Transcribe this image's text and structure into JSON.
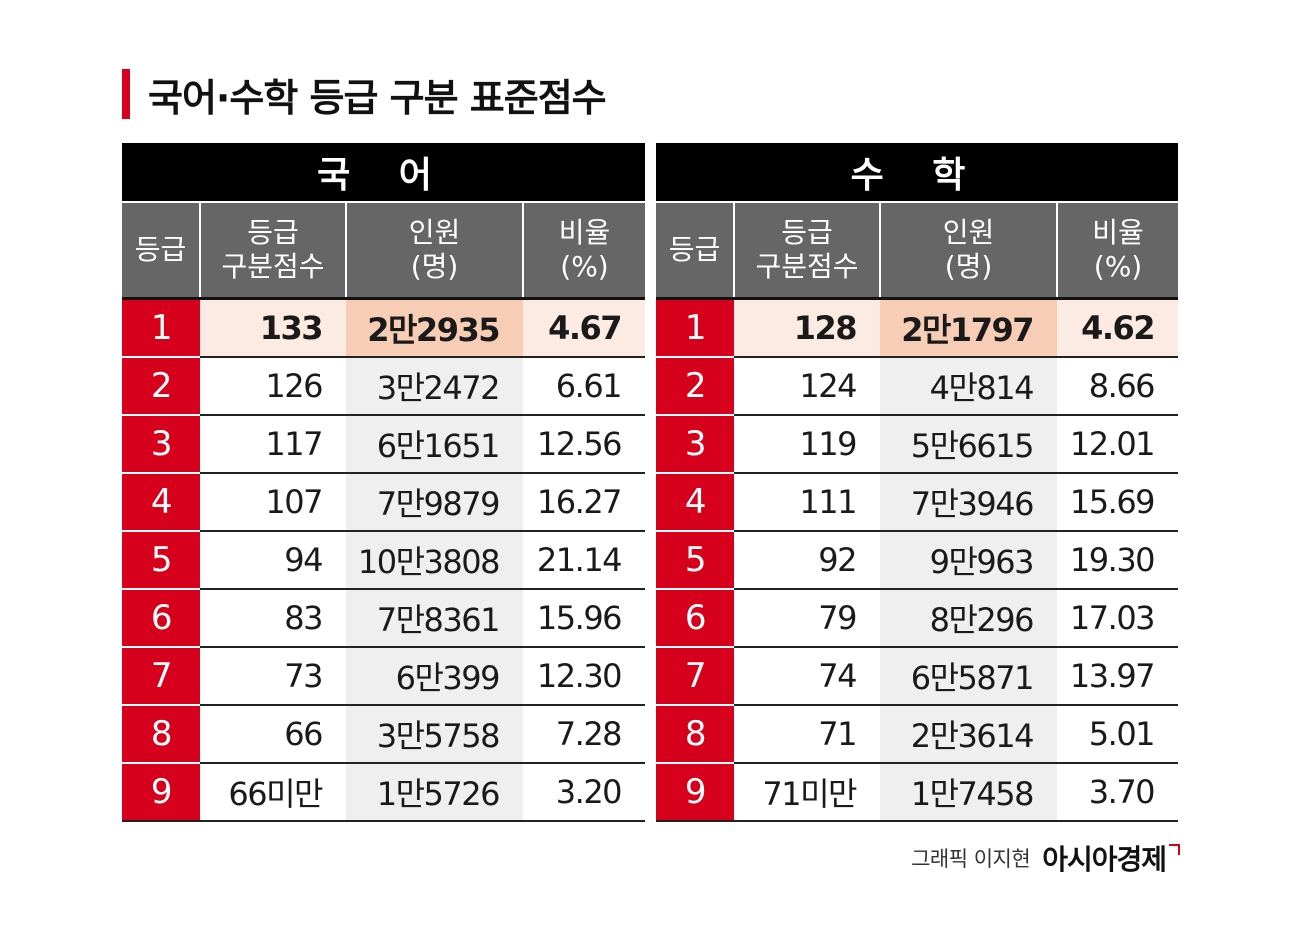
{
  "title": "국어·수학 등급 구분 표준점수",
  "headers": {
    "grade": "등급",
    "cut_line1": "등급",
    "cut_line2": "구분점수",
    "count_line1": "인원",
    "count_line2": "(명)",
    "ratio_line1": "비율",
    "ratio_line2": "(%)"
  },
  "colors": {
    "accent": "#d6001c",
    "header": "#666666",
    "highlight": "#fcebe2",
    "highlight_strong": "#f8cdb6"
  },
  "chart_data": {
    "type": "table",
    "title": "국어·수학 등급 구분 표준점수",
    "columns": [
      "등급",
      "등급 구분점수",
      "인원 (명)",
      "비율 (%)"
    ],
    "tables": [
      {
        "subject": "국  어",
        "rows": [
          {
            "grade": "1",
            "cut": "133",
            "count": "2만2935",
            "ratio": "4.67"
          },
          {
            "grade": "2",
            "cut": "126",
            "count": "3만2472",
            "ratio": "6.61"
          },
          {
            "grade": "3",
            "cut": "117",
            "count": "6만1651",
            "ratio": "12.56"
          },
          {
            "grade": "4",
            "cut": "107",
            "count": "7만9879",
            "ratio": "16.27"
          },
          {
            "grade": "5",
            "cut": "94",
            "count": "10만3808",
            "ratio": "21.14"
          },
          {
            "grade": "6",
            "cut": "83",
            "count": "7만8361",
            "ratio": "15.96"
          },
          {
            "grade": "7",
            "cut": "73",
            "count": "6만399",
            "ratio": "12.30"
          },
          {
            "grade": "8",
            "cut": "66",
            "count": "3만5758",
            "ratio": "7.28"
          },
          {
            "grade": "9",
            "cut": "66미만",
            "count": "1만5726",
            "ratio": "3.20"
          }
        ]
      },
      {
        "subject": "수  학",
        "rows": [
          {
            "grade": "1",
            "cut": "128",
            "count": "2만1797",
            "ratio": "4.62"
          },
          {
            "grade": "2",
            "cut": "124",
            "count": "4만814",
            "ratio": "8.66"
          },
          {
            "grade": "3",
            "cut": "119",
            "count": "5만6615",
            "ratio": "12.01"
          },
          {
            "grade": "4",
            "cut": "111",
            "count": "7만3946",
            "ratio": "15.69"
          },
          {
            "grade": "5",
            "cut": "92",
            "count": "9만963",
            "ratio": "19.30"
          },
          {
            "grade": "6",
            "cut": "79",
            "count": "8만296",
            "ratio": "17.03"
          },
          {
            "grade": "7",
            "cut": "74",
            "count": "6만5871",
            "ratio": "13.97"
          },
          {
            "grade": "8",
            "cut": "71",
            "count": "2만3614",
            "ratio": "5.01"
          },
          {
            "grade": "9",
            "cut": "71미만",
            "count": "1만7458",
            "ratio": "3.70"
          }
        ]
      }
    ]
  },
  "footer": {
    "credit": "그래픽 이지현",
    "brand": "아시아경제"
  }
}
